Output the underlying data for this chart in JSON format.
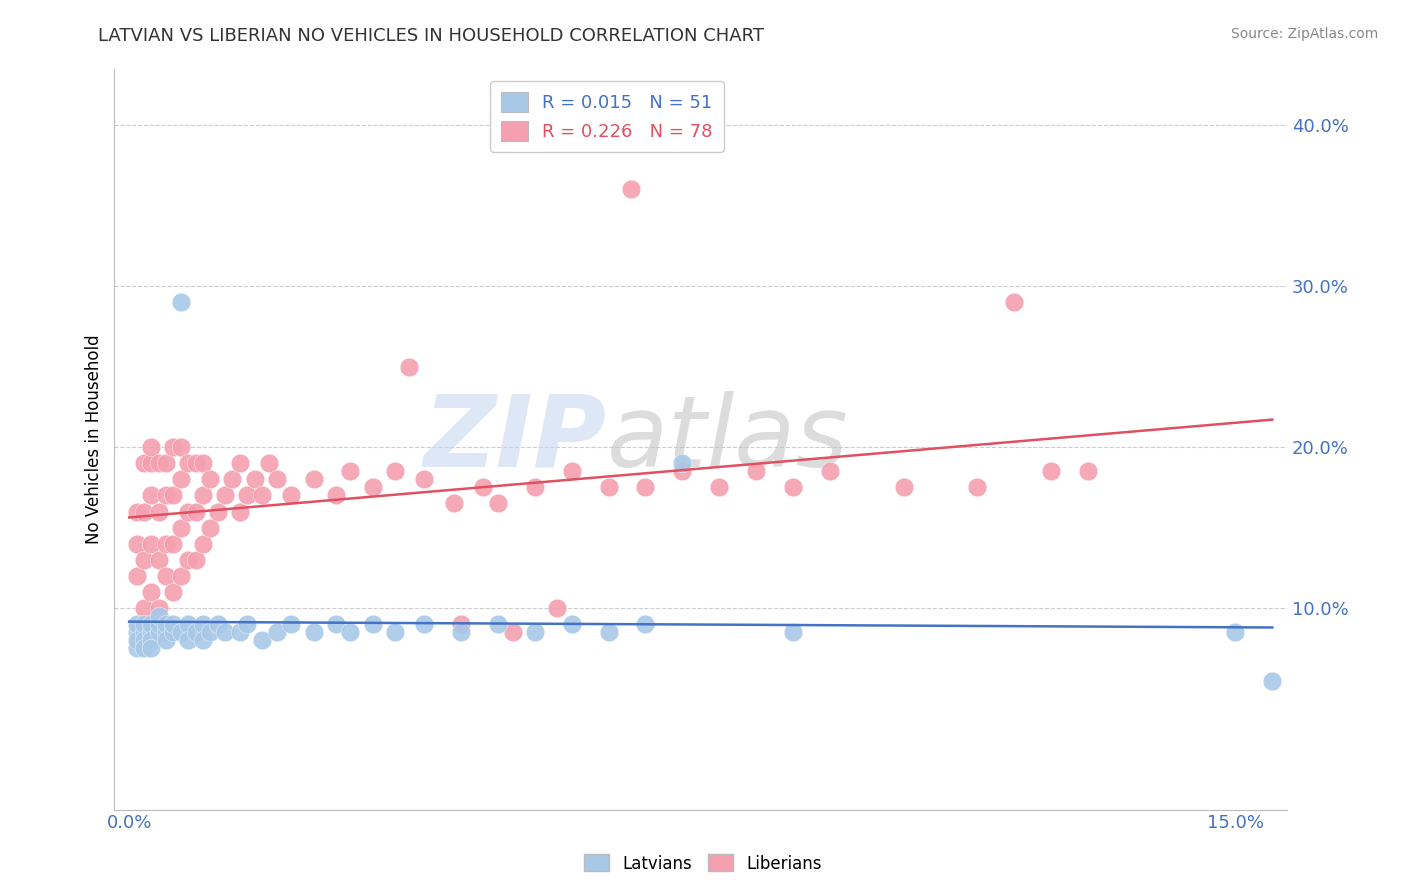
{
  "title": "LATVIAN VS LIBERIAN NO VEHICLES IN HOUSEHOLD CORRELATION CHART",
  "source": "Source: ZipAtlas.com",
  "ylabel": "No Vehicles in Household",
  "latvian_color": "#A8C8E8",
  "liberian_color": "#F4A0B0",
  "latvian_line_color": "#4472C4",
  "liberian_line_color": "#E05060",
  "legend_latvian_R": "R = 0.015",
  "legend_latvian_N": "N = 51",
  "legend_liberian_R": "R = 0.226",
  "legend_liberian_N": "N = 78",
  "watermark_zip": "ZIP",
  "watermark_atlas": "atlas",
  "xlim": [
    -0.002,
    0.157
  ],
  "ylim": [
    -0.025,
    0.435
  ],
  "yticks": [
    0.1,
    0.2,
    0.3,
    0.4
  ],
  "ytick_labels": [
    "10.0%",
    "20.0%",
    "30.0%",
    "40.0%"
  ],
  "xtick_positions": [
    0.0,
    0.025,
    0.05,
    0.075,
    0.1,
    0.125,
    0.15
  ],
  "xtick_labels": [
    "0.0%",
    "",
    "",
    "",
    "",
    "",
    "15.0%"
  ],
  "latvian_x": [
    0.001,
    0.001,
    0.001,
    0.001,
    0.002,
    0.002,
    0.002,
    0.002,
    0.003,
    0.003,
    0.003,
    0.003,
    0.004,
    0.004,
    0.004,
    0.005,
    0.005,
    0.005,
    0.006,
    0.006,
    0.007,
    0.007,
    0.008,
    0.008,
    0.009,
    0.01,
    0.01,
    0.011,
    0.012,
    0.013,
    0.015,
    0.016,
    0.018,
    0.02,
    0.022,
    0.025,
    0.028,
    0.03,
    0.033,
    0.036,
    0.04,
    0.045,
    0.05,
    0.055,
    0.06,
    0.065,
    0.07,
    0.075,
    0.09,
    0.15,
    0.155
  ],
  "latvian_y": [
    0.085,
    0.09,
    0.075,
    0.08,
    0.085,
    0.09,
    0.08,
    0.075,
    0.085,
    0.09,
    0.08,
    0.075,
    0.085,
    0.09,
    0.095,
    0.085,
    0.09,
    0.08,
    0.085,
    0.09,
    0.29,
    0.085,
    0.09,
    0.08,
    0.085,
    0.09,
    0.08,
    0.085,
    0.09,
    0.085,
    0.085,
    0.09,
    0.08,
    0.085,
    0.09,
    0.085,
    0.09,
    0.085,
    0.09,
    0.085,
    0.09,
    0.085,
    0.09,
    0.085,
    0.09,
    0.085,
    0.09,
    0.19,
    0.085,
    0.085,
    0.055
  ],
  "liberian_x": [
    0.001,
    0.001,
    0.001,
    0.002,
    0.002,
    0.002,
    0.002,
    0.003,
    0.003,
    0.003,
    0.003,
    0.003,
    0.004,
    0.004,
    0.004,
    0.004,
    0.005,
    0.005,
    0.005,
    0.005,
    0.006,
    0.006,
    0.006,
    0.006,
    0.007,
    0.007,
    0.007,
    0.007,
    0.008,
    0.008,
    0.008,
    0.009,
    0.009,
    0.009,
    0.01,
    0.01,
    0.01,
    0.011,
    0.011,
    0.012,
    0.013,
    0.014,
    0.015,
    0.015,
    0.016,
    0.017,
    0.018,
    0.019,
    0.02,
    0.022,
    0.025,
    0.028,
    0.03,
    0.033,
    0.036,
    0.04,
    0.044,
    0.048,
    0.05,
    0.055,
    0.06,
    0.065,
    0.07,
    0.075,
    0.08,
    0.085,
    0.09,
    0.095,
    0.105,
    0.115,
    0.12,
    0.125,
    0.13,
    0.038,
    0.045,
    0.052,
    0.058,
    0.068
  ],
  "liberian_y": [
    0.12,
    0.14,
    0.16,
    0.1,
    0.13,
    0.16,
    0.19,
    0.11,
    0.14,
    0.17,
    0.19,
    0.2,
    0.1,
    0.13,
    0.16,
    0.19,
    0.12,
    0.14,
    0.17,
    0.19,
    0.11,
    0.14,
    0.17,
    0.2,
    0.12,
    0.15,
    0.18,
    0.2,
    0.13,
    0.16,
    0.19,
    0.13,
    0.16,
    0.19,
    0.14,
    0.17,
    0.19,
    0.15,
    0.18,
    0.16,
    0.17,
    0.18,
    0.16,
    0.19,
    0.17,
    0.18,
    0.17,
    0.19,
    0.18,
    0.17,
    0.18,
    0.17,
    0.185,
    0.175,
    0.185,
    0.18,
    0.165,
    0.175,
    0.165,
    0.175,
    0.185,
    0.175,
    0.175,
    0.185,
    0.175,
    0.185,
    0.175,
    0.185,
    0.175,
    0.175,
    0.29,
    0.185,
    0.185,
    0.25,
    0.09,
    0.085,
    0.1,
    0.36
  ]
}
